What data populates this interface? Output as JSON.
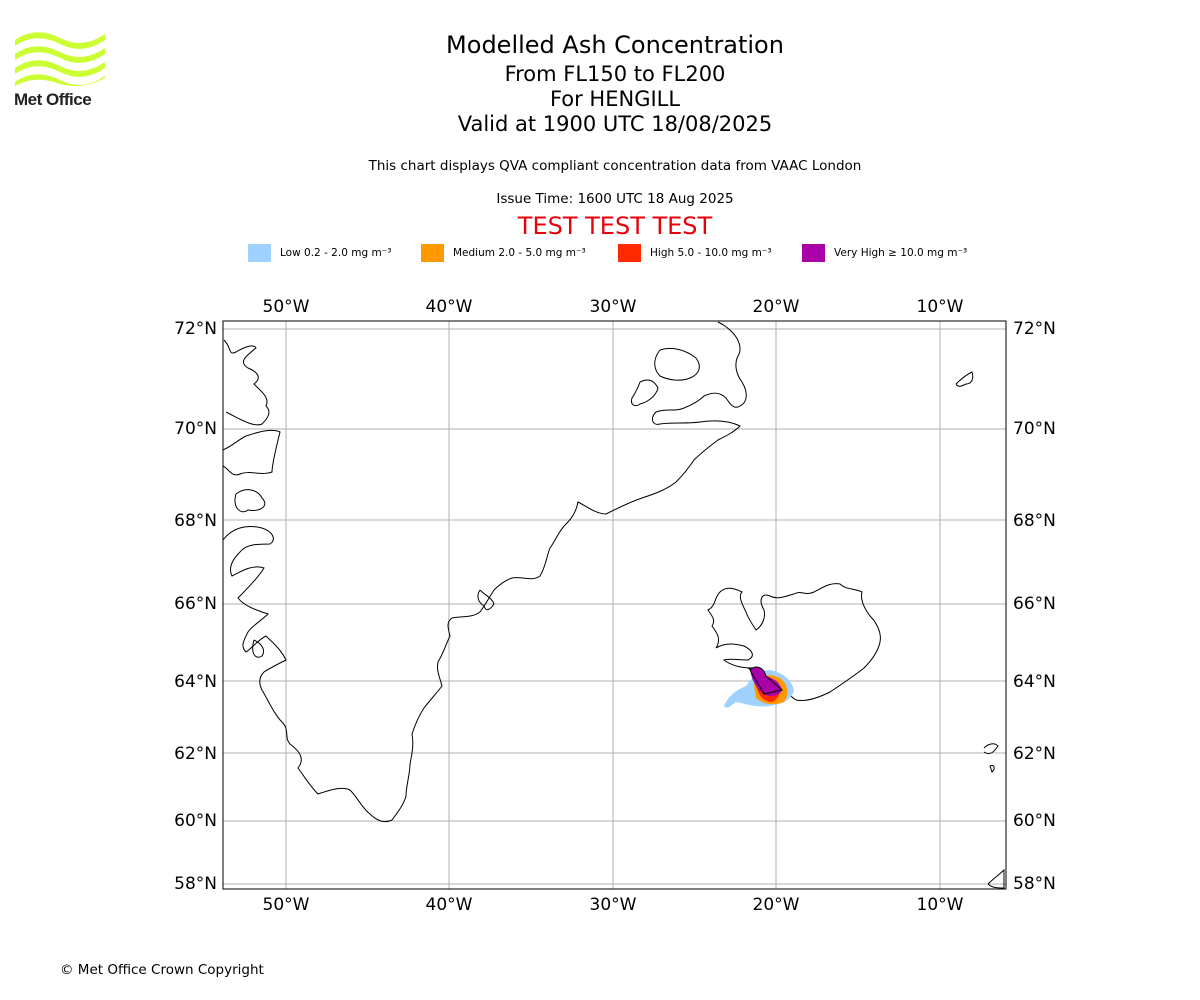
{
  "logo": {
    "text": "Met Office",
    "color": "#ccff33"
  },
  "title": {
    "line1": "Modelled Ash Concentration",
    "line2": "From FL150 to FL200",
    "line3": "For HENGILL",
    "line4": "Valid at 1900 UTC 18/08/2025"
  },
  "subtitle": "This chart displays QVA compliant concentration data from VAAC London",
  "issue_time": "Issue Time: 1600 UTC 18 Aug 2025",
  "test_banner": "TEST TEST TEST",
  "legend": [
    {
      "level": "Low",
      "range": "0.2 - 2.0",
      "unit": "mg m⁻³",
      "label": "Low 0.2 - 2.0 mg m⁻³",
      "color": "#a0d2ff"
    },
    {
      "level": "Medium",
      "range": "2.0 - 5.0",
      "unit": "mg m⁻³",
      "label": "Medium 2.0 - 5.0 mg m⁻³",
      "color": "#ff9900"
    },
    {
      "level": "High",
      "range": "5.0 - 10.0",
      "unit": "mg m⁻³",
      "label": "High 5.0 - 10.0 mg m⁻³",
      "color": "#ff2a00"
    },
    {
      "level": "Very High",
      "range": "≥ 10.0",
      "unit": "mg m⁻³",
      "label": "Very High ≥ 10.0 mg m⁻³",
      "color": "#aa00aa"
    }
  ],
  "map": {
    "extent": {
      "lon": [
        -54,
        -6
      ],
      "lat": [
        58,
        72
      ]
    },
    "lon_ticks": [
      "50°W",
      "40°W",
      "30°W",
      "20°W",
      "10°W"
    ],
    "lat_ticks": [
      "72°N",
      "70°N",
      "68°N",
      "66°N",
      "64°N",
      "62°N",
      "60°N",
      "58°N"
    ],
    "grid": true
  },
  "copyright": "© Met Office Crown Copyright"
}
